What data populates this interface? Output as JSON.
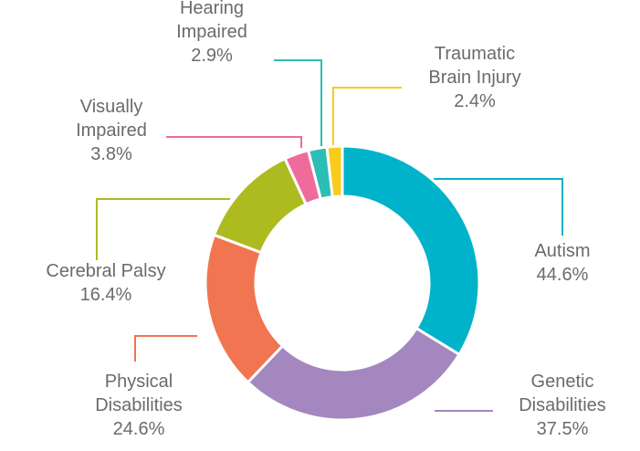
{
  "chart_data": {
    "type": "donut",
    "categories": [
      "Autism",
      "Genetic\nDisabilities",
      "Physical\nDisabilities",
      "Cerebral Palsy",
      "Visually\nImpaired",
      "Hearing\nImpaired",
      "Traumatic\nBrain Injury"
    ],
    "values": [
      44.6,
      37.5,
      24.6,
      16.4,
      3.8,
      2.9,
      2.4
    ],
    "value_labels": [
      "44.6%",
      "37.5%",
      "24.6%",
      "16.4%",
      "3.8%",
      "2.9%",
      "2.4%"
    ],
    "colors": [
      "#00b3ca",
      "#a487bf",
      "#f07550",
      "#adbb21",
      "#ef6b9b",
      "#2cbdb4",
      "#f8cb1c"
    ]
  }
}
